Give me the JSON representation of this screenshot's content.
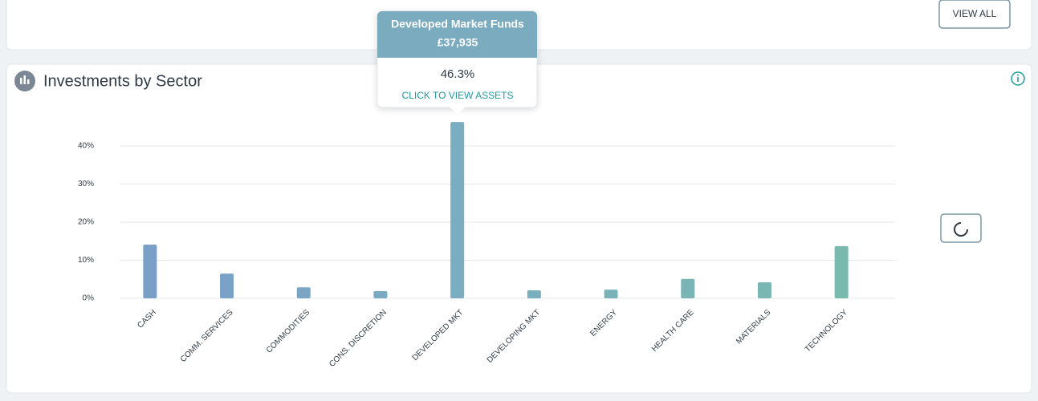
{
  "top_card": {
    "button": "VIEW ALL"
  },
  "chart_data": {
    "type": "bar",
    "title": "Investments by Sector",
    "categories": [
      "CASH",
      "COMM. SERVICES",
      "COMMODITIES",
      "CONS. DISCRETION",
      "DEVELOPED MKT",
      "DEVELOPING MKT",
      "ENERGY",
      "HEALTH CARE",
      "MATERIALS",
      "TECHNOLOGY"
    ],
    "values": [
      14.1,
      6.5,
      2.9,
      1.9,
      46.3,
      2.1,
      2.3,
      5.1,
      4.2,
      13.7
    ],
    "colors": [
      "#7aa0c8",
      "#7aa2c6",
      "#7aa6c4",
      "#7aa9c2",
      "#7aadbf",
      "#7ab0bd",
      "#7ab2ba",
      "#7ab4b6",
      "#7ab6b2",
      "#7ab9ad"
    ],
    "ylim": [
      0,
      50
    ],
    "yticks": [
      {
        "value": 0,
        "label": "0%"
      },
      {
        "value": 10,
        "label": "10%"
      },
      {
        "value": 20,
        "label": "20%"
      },
      {
        "value": 30,
        "label": "30%"
      },
      {
        "value": 40,
        "label": "40%"
      }
    ],
    "grid": true
  },
  "tooltip": {
    "title": "Developed Market Funds",
    "amount": "£37,935",
    "share": "46.3%",
    "action": "CLICK TO VIEW ASSETS"
  }
}
